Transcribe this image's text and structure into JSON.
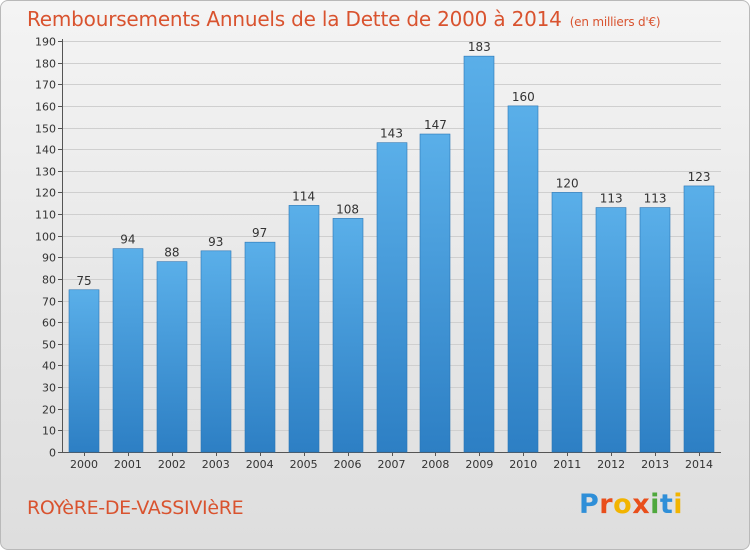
{
  "title": "Remboursements Annuels de la Dette de 2000 à 2014",
  "unit_note": "(en milliers d'€)",
  "place_name": "ROYèRE-DE-VASSIVIèRE",
  "logo": {
    "p": "P",
    "r": "r",
    "o": "o",
    "x": "x",
    "i1": "i",
    "t": "t",
    "i2": "i"
  },
  "colors": {
    "bar_light": "#5aafe9",
    "bar_dark": "#2d7fc4",
    "title": "#d9532f"
  },
  "chart_data": {
    "type": "bar",
    "categories": [
      "2000",
      "2001",
      "2002",
      "2003",
      "2004",
      "2005",
      "2006",
      "2007",
      "2008",
      "2009",
      "2010",
      "2011",
      "2012",
      "2013",
      "2014"
    ],
    "values": [
      75,
      94,
      88,
      93,
      97,
      114,
      108,
      143,
      147,
      183,
      160,
      120,
      113,
      113,
      123
    ],
    "ylim": [
      0,
      190
    ],
    "yticks": [
      0,
      10,
      20,
      30,
      40,
      50,
      60,
      70,
      80,
      90,
      100,
      110,
      120,
      130,
      140,
      150,
      160,
      170,
      180,
      190
    ],
    "grid": true,
    "data_labels": true
  }
}
